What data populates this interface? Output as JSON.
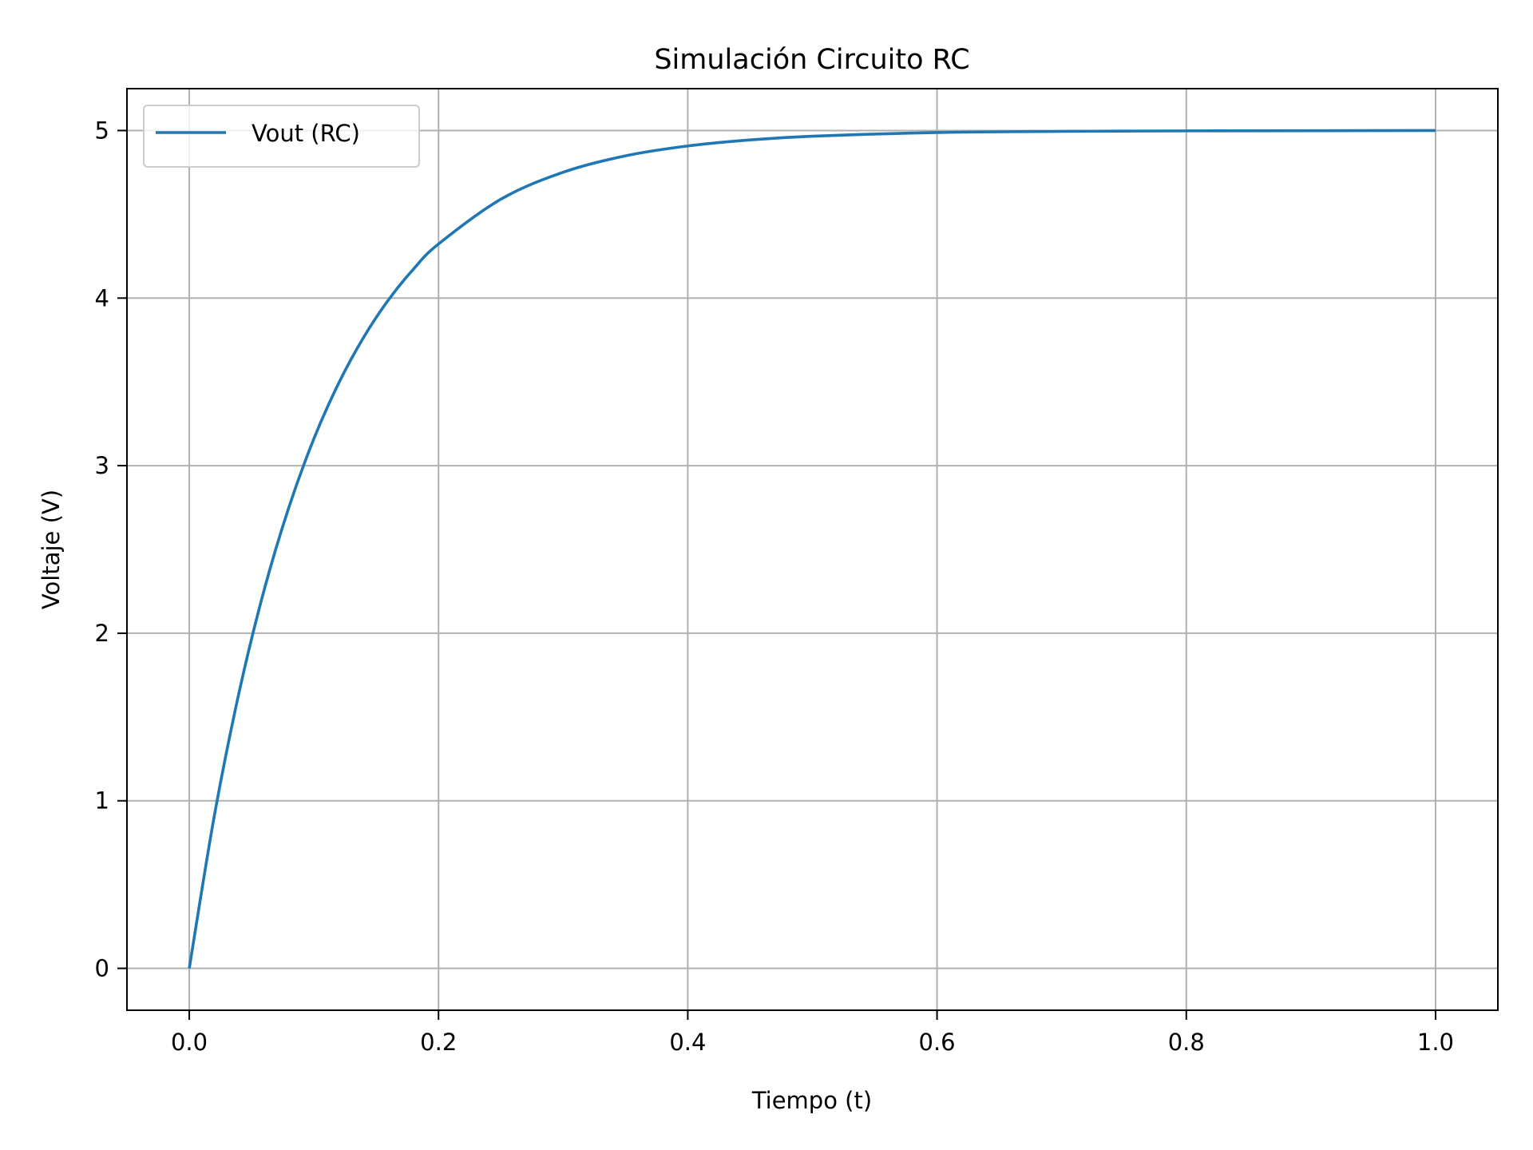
{
  "chart_data": {
    "type": "line",
    "title": "Simulación Circuito RC",
    "xlabel": "Tiempo (t)",
    "ylabel": "Voltaje (V)",
    "xlim": [
      -0.05,
      1.05
    ],
    "ylim": [
      -0.25,
      5.25
    ],
    "xticks": [
      0.0,
      0.2,
      0.4,
      0.6,
      0.8,
      1.0
    ],
    "xtick_labels": [
      "0.0",
      "0.2",
      "0.4",
      "0.6",
      "0.8",
      "1.0"
    ],
    "yticks": [
      0,
      1,
      2,
      3,
      4,
      5
    ],
    "ytick_labels": [
      "0",
      "1",
      "2",
      "3",
      "4",
      "5"
    ],
    "grid": true,
    "legend": {
      "placement": "upper-left",
      "entries": [
        "Vout (RC)"
      ]
    },
    "series": [
      {
        "name": "Vout (RC)",
        "color": "#1f77b4",
        "x": [
          0.0,
          0.02,
          0.04,
          0.06,
          0.08,
          0.1,
          0.12,
          0.14,
          0.16,
          0.18,
          0.2,
          0.25,
          0.3,
          0.35,
          0.4,
          0.45,
          0.5,
          0.6,
          0.7,
          0.8,
          0.9,
          1.0
        ],
        "y": [
          0.0,
          0.906,
          1.648,
          2.256,
          2.753,
          3.161,
          3.494,
          3.767,
          3.991,
          4.174,
          4.323,
          4.59,
          4.751,
          4.849,
          4.908,
          4.944,
          4.966,
          4.988,
          4.995,
          4.998,
          4.999,
          5.0
        ]
      }
    ]
  }
}
